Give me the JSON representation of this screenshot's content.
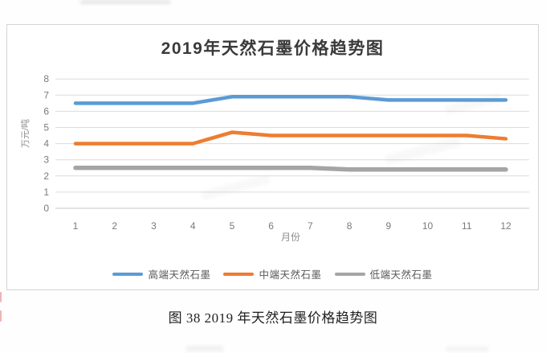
{
  "page": {
    "caption": "图 38 2019 年天然石墨价格趋势图"
  },
  "chart_data": {
    "type": "line",
    "title": "2019年天然石墨价格趋势图",
    "xlabel": "月份",
    "ylabel": "万元/吨",
    "categories": [
      "1",
      "2",
      "3",
      "4",
      "5",
      "6",
      "7",
      "8",
      "9",
      "10",
      "11",
      "12"
    ],
    "series": [
      {
        "name": "高端天然石墨",
        "color": "#5B9BD5",
        "values": [
          6.5,
          6.5,
          6.5,
          6.5,
          6.9,
          6.9,
          6.9,
          6.9,
          6.7,
          6.7,
          6.7,
          6.7
        ]
      },
      {
        "name": "中端天然石墨",
        "color": "#ED7D31",
        "values": [
          4.0,
          4.0,
          4.0,
          4.0,
          4.7,
          4.5,
          4.5,
          4.5,
          4.5,
          4.5,
          4.5,
          4.3
        ]
      },
      {
        "name": "低端天然石墨",
        "color": "#A5A5A5",
        "values": [
          2.5,
          2.5,
          2.5,
          2.5,
          2.5,
          2.5,
          2.5,
          2.4,
          2.4,
          2.4,
          2.4,
          2.4
        ]
      }
    ],
    "ylim": [
      0,
      8
    ],
    "yticks": [
      0,
      1,
      2,
      3,
      4,
      5,
      6,
      7,
      8
    ],
    "grid": true,
    "legend_position": "bottom",
    "gridline_color": "#dcdcdc",
    "axis_label_color": "#7a7a7a"
  }
}
